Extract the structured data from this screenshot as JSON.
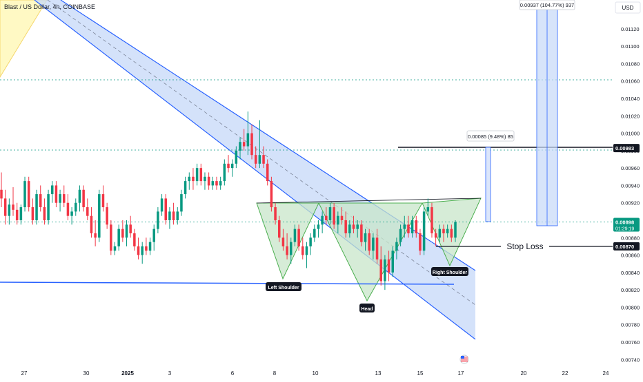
{
  "header": {
    "symbol_title": "Blast / US Dollar, 4h, COINBASE",
    "currency": "USD"
  },
  "chart_data": {
    "type": "candlestick",
    "title": "Blast / US Dollar, 4h, COINBASE",
    "y_axis": {
      "ticks": [
        "0.01120",
        "0.01100",
        "0.01080",
        "0.01060",
        "0.01040",
        "0.01020",
        "0.01000",
        "0.00980",
        "0.00960",
        "0.00940",
        "0.00920",
        "0.00900",
        "0.00880",
        "0.00860",
        "0.00840",
        "0.00820",
        "0.00800",
        "0.00780",
        "0.00760",
        "0.00740"
      ],
      "range": [
        0.00732,
        0.01145
      ]
    },
    "x_axis": {
      "ticks": [
        "27",
        "30",
        "2025",
        "3",
        "6",
        "8",
        "10",
        "13",
        "15",
        "17",
        "20",
        "22",
        "24"
      ]
    },
    "price_badges": [
      {
        "label": "0.00983",
        "value": 0.00983,
        "style": "black"
      },
      {
        "label": "0.00898",
        "sublabel": "01:29:19",
        "value": 0.00898,
        "style": "green"
      },
      {
        "label": "0.00870",
        "value": 0.0087,
        "style": "black"
      }
    ],
    "annotations": {
      "left_shoulder": "Left Shoulder",
      "head": "Head",
      "right_shoulder": "Right Shoulder",
      "stop_loss": "Stop Loss",
      "measure_small": "0.00085 (9.48%) 85",
      "measure_big": "0.00937 (104.77%) 937"
    },
    "candles_ohlc": [
      [
        0.00935,
        0.00955,
        0.00915,
        0.00925
      ],
      [
        0.00925,
        0.00935,
        0.00895,
        0.00905
      ],
      [
        0.00905,
        0.00925,
        0.00895,
        0.00918
      ],
      [
        0.00918,
        0.00938,
        0.00905,
        0.00912
      ],
      [
        0.00912,
        0.0092,
        0.00895,
        0.009
      ],
      [
        0.009,
        0.00918,
        0.00895,
        0.00915
      ],
      [
        0.00915,
        0.0095,
        0.0091,
        0.00945
      ],
      [
        0.00945,
        0.0095,
        0.0091,
        0.00915
      ],
      [
        0.00915,
        0.00925,
        0.00895,
        0.009
      ],
      [
        0.009,
        0.00935,
        0.00895,
        0.0093
      ],
      [
        0.0093,
        0.0094,
        0.0091,
        0.00915
      ],
      [
        0.00915,
        0.00925,
        0.00895,
        0.009
      ],
      [
        0.009,
        0.00935,
        0.00895,
        0.0093
      ],
      [
        0.0093,
        0.00945,
        0.0092,
        0.0094
      ],
      [
        0.0094,
        0.00945,
        0.00915,
        0.0092
      ],
      [
        0.0092,
        0.00935,
        0.0091,
        0.0093
      ],
      [
        0.0093,
        0.0094,
        0.00915,
        0.0092
      ],
      [
        0.0092,
        0.0093,
        0.009,
        0.00905
      ],
      [
        0.00905,
        0.00915,
        0.00895,
        0.0091
      ],
      [
        0.0091,
        0.00925,
        0.00905,
        0.0092
      ],
      [
        0.0092,
        0.0094,
        0.0091,
        0.00935
      ],
      [
        0.00935,
        0.0094,
        0.0091,
        0.00915
      ],
      [
        0.00915,
        0.00925,
        0.009,
        0.00905
      ],
      [
        0.00905,
        0.00915,
        0.0088,
        0.00885
      ],
      [
        0.00885,
        0.009,
        0.0087,
        0.0088
      ],
      [
        0.0088,
        0.00935,
        0.00875,
        0.0093
      ],
      [
        0.0093,
        0.0094,
        0.0091,
        0.00915
      ],
      [
        0.00915,
        0.0092,
        0.0089,
        0.00895
      ],
      [
        0.00895,
        0.009,
        0.0086,
        0.00865
      ],
      [
        0.00865,
        0.00875,
        0.0086,
        0.0087
      ],
      [
        0.0087,
        0.00895,
        0.00865,
        0.0089
      ],
      [
        0.0089,
        0.009,
        0.00875,
        0.0088
      ],
      [
        0.0088,
        0.009,
        0.0087,
        0.00895
      ],
      [
        0.00895,
        0.00905,
        0.0088,
        0.00885
      ],
      [
        0.00885,
        0.0089,
        0.00865,
        0.0087
      ],
      [
        0.0087,
        0.0088,
        0.00855,
        0.0086
      ],
      [
        0.0086,
        0.00875,
        0.0085,
        0.0087
      ],
      [
        0.0087,
        0.0088,
        0.0086,
        0.00865
      ],
      [
        0.00865,
        0.0088,
        0.0086,
        0.00875
      ],
      [
        0.00875,
        0.00895,
        0.00865,
        0.0089
      ],
      [
        0.0089,
        0.00915,
        0.00885,
        0.0091
      ],
      [
        0.0091,
        0.0093,
        0.00905,
        0.00925
      ],
      [
        0.00925,
        0.0093,
        0.00895,
        0.009
      ],
      [
        0.009,
        0.00915,
        0.0089,
        0.0091
      ],
      [
        0.0091,
        0.0092,
        0.00895,
        0.009
      ],
      [
        0.009,
        0.00915,
        0.00895,
        0.0091
      ],
      [
        0.0091,
        0.00935,
        0.00905,
        0.0093
      ],
      [
        0.0093,
        0.0095,
        0.00925,
        0.00945
      ],
      [
        0.00945,
        0.00955,
        0.00935,
        0.0095
      ],
      [
        0.0095,
        0.0096,
        0.00935,
        0.00945
      ],
      [
        0.00945,
        0.00965,
        0.0094,
        0.0096
      ],
      [
        0.0096,
        0.00965,
        0.0094,
        0.00945
      ],
      [
        0.00945,
        0.00955,
        0.00935,
        0.0095
      ],
      [
        0.0095,
        0.00955,
        0.00935,
        0.0094
      ],
      [
        0.0094,
        0.0095,
        0.00935,
        0.00945
      ],
      [
        0.00945,
        0.0095,
        0.00935,
        0.0094
      ],
      [
        0.0094,
        0.0095,
        0.00935,
        0.00945
      ],
      [
        0.00945,
        0.0097,
        0.0094,
        0.00965
      ],
      [
        0.00965,
        0.00975,
        0.00955,
        0.0096
      ],
      [
        0.0096,
        0.0097,
        0.0095,
        0.00965
      ],
      [
        0.00965,
        0.00985,
        0.0096,
        0.0098
      ],
      [
        0.0098,
        0.00995,
        0.0097,
        0.0099
      ],
      [
        0.0099,
        0.01005,
        0.0098,
        0.00985
      ],
      [
        0.00985,
        0.01025,
        0.00975,
        0.01
      ],
      [
        0.01,
        0.0101,
        0.0097,
        0.00975
      ],
      [
        0.00975,
        0.00985,
        0.0096,
        0.00965
      ],
      [
        0.00965,
        0.01015,
        0.0096,
        0.00975
      ],
      [
        0.00975,
        0.00985,
        0.0096,
        0.00965
      ],
      [
        0.00965,
        0.0097,
        0.0094,
        0.00945
      ],
      [
        0.00945,
        0.0095,
        0.0091,
        0.00915
      ],
      [
        0.00915,
        0.0092,
        0.00895,
        0.009
      ],
      [
        0.009,
        0.00905,
        0.00875,
        0.0088
      ],
      [
        0.0088,
        0.0089,
        0.00865,
        0.0087
      ],
      [
        0.0087,
        0.00885,
        0.00855,
        0.0086
      ],
      [
        0.0086,
        0.0088,
        0.0085,
        0.00875
      ],
      [
        0.00875,
        0.00895,
        0.0087,
        0.0089
      ],
      [
        0.0089,
        0.00895,
        0.00865,
        0.0087
      ],
      [
        0.0087,
        0.0088,
        0.00855,
        0.0086
      ],
      [
        0.0086,
        0.00875,
        0.00845,
        0.0087
      ],
      [
        0.0087,
        0.00885,
        0.0086,
        0.0088
      ],
      [
        0.0088,
        0.00895,
        0.00875,
        0.0089
      ],
      [
        0.0089,
        0.009,
        0.0088,
        0.00895
      ],
      [
        0.00895,
        0.0091,
        0.00885,
        0.00905
      ],
      [
        0.00905,
        0.00915,
        0.00895,
        0.009
      ],
      [
        0.009,
        0.0092,
        0.00895,
        0.00915
      ],
      [
        0.00915,
        0.0092,
        0.0089,
        0.00895
      ],
      [
        0.00895,
        0.0091,
        0.00885,
        0.00905
      ],
      [
        0.00905,
        0.00915,
        0.00895,
        0.009
      ],
      [
        0.009,
        0.0091,
        0.0088,
        0.00885
      ],
      [
        0.00885,
        0.009,
        0.0088,
        0.00895
      ],
      [
        0.00895,
        0.00905,
        0.00885,
        0.0089
      ],
      [
        0.0089,
        0.009,
        0.0088,
        0.00895
      ],
      [
        0.00895,
        0.009,
        0.0087,
        0.00875
      ],
      [
        0.00875,
        0.0089,
        0.00865,
        0.00885
      ],
      [
        0.00885,
        0.0089,
        0.0086,
        0.00865
      ],
      [
        0.00865,
        0.00885,
        0.00855,
        0.0088
      ],
      [
        0.0088,
        0.0089,
        0.0085,
        0.00855
      ],
      [
        0.00855,
        0.0087,
        0.00825,
        0.0083
      ],
      [
        0.0083,
        0.0086,
        0.0082,
        0.00855
      ],
      [
        0.00855,
        0.00865,
        0.0083,
        0.0084
      ],
      [
        0.0084,
        0.0087,
        0.00835,
        0.00865
      ],
      [
        0.00865,
        0.0088,
        0.00855,
        0.00875
      ],
      [
        0.00875,
        0.00895,
        0.0087,
        0.0089
      ],
      [
        0.0089,
        0.00905,
        0.0088,
        0.00895
      ],
      [
        0.00895,
        0.00905,
        0.0088,
        0.00885
      ],
      [
        0.00885,
        0.00905,
        0.0088,
        0.009
      ],
      [
        0.009,
        0.00905,
        0.0088,
        0.00885
      ],
      [
        0.00885,
        0.0089,
        0.0086,
        0.00865
      ],
      [
        0.00865,
        0.00915,
        0.0086,
        0.0091
      ],
      [
        0.0091,
        0.00925,
        0.00905,
        0.00915
      ],
      [
        0.00915,
        0.0092,
        0.0088,
        0.00885
      ],
      [
        0.00885,
        0.0089,
        0.0087,
        0.0088
      ],
      [
        0.0088,
        0.00895,
        0.00875,
        0.0089
      ],
      [
        0.0089,
        0.00895,
        0.00875,
        0.00885
      ],
      [
        0.00885,
        0.00895,
        0.0088,
        0.0089
      ],
      [
        0.0089,
        0.00895,
        0.00875,
        0.0088
      ],
      [
        0.0088,
        0.009,
        0.00875,
        0.00898
      ]
    ],
    "grid": "horizontal dotted reference lines",
    "legend": "none"
  }
}
